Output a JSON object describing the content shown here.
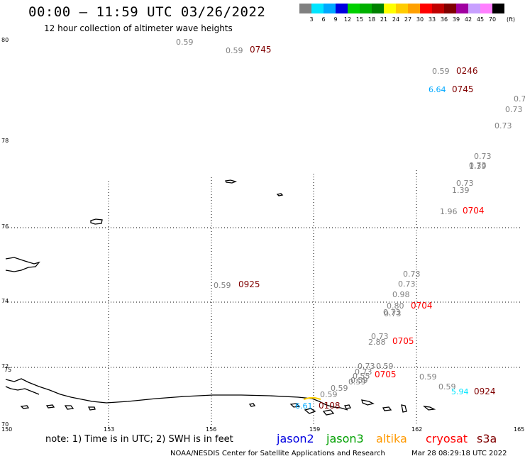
{
  "header": {
    "title": "00:00 – 11:59 UTC 03/26/2022",
    "subtitle": "12 hour collection of altimeter wave heights"
  },
  "colorbar": {
    "colors": [
      "#808080",
      "#00e5ff",
      "#00a8ff",
      "#0000e0",
      "#00d000",
      "#00b000",
      "#008000",
      "#ffff00",
      "#ffcc00",
      "#ffa000",
      "#ff0000",
      "#c00000",
      "#800000",
      "#a000a0",
      "#c8a0ff",
      "#ff80ff",
      "#000000"
    ],
    "ticks": [
      "3",
      "6",
      "9",
      "12",
      "15",
      "18",
      "21",
      "24",
      "27",
      "30",
      "33",
      "36",
      "39",
      "42",
      "45",
      "70"
    ],
    "unit": "(ft)"
  },
  "map": {
    "lat_labels": [
      "80",
      "78",
      "76",
      "74",
      "72",
      "70",
      "75"
    ],
    "lon_labels": [
      "150",
      "153",
      "156",
      "159",
      "162",
      "165"
    ]
  },
  "observations": [
    {
      "text": "0.59",
      "color": "#808080"
    },
    {
      "text": "0.59",
      "color": "#808080"
    },
    {
      "text": "0745",
      "color": "#800000"
    },
    {
      "text": "0.59",
      "color": "#808080"
    },
    {
      "text": "0246",
      "color": "#800000"
    },
    {
      "text": "6.64",
      "color": "#00a8ff"
    },
    {
      "text": "0745",
      "color": "#800000"
    },
    {
      "text": "0.7",
      "color": "#808080"
    },
    {
      "text": "0.73",
      "color": "#808080"
    },
    {
      "text": "0.73",
      "color": "#808080"
    },
    {
      "text": "0.73",
      "color": "#808080"
    },
    {
      "text": "0.73",
      "color": "#808080"
    },
    {
      "text": "1.39",
      "color": "#808080"
    },
    {
      "text": "0.73",
      "color": "#808080"
    },
    {
      "text": "1.39",
      "color": "#808080"
    },
    {
      "text": "1.96",
      "color": "#808080"
    },
    {
      "text": "0704",
      "color": "#ff0000"
    },
    {
      "text": "0.59",
      "color": "#808080"
    },
    {
      "text": "0925",
      "color": "#800000"
    },
    {
      "text": "0.73",
      "color": "#808080"
    },
    {
      "text": "0.73",
      "color": "#808080"
    },
    {
      "text": "0.98",
      "color": "#808080"
    },
    {
      "text": "0.80",
      "color": "#808080"
    },
    {
      "text": "0.73",
      "color": "#808080"
    },
    {
      "text": "0.73",
      "color": "#808080"
    },
    {
      "text": "0704",
      "color": "#ff0000"
    },
    {
      "text": "0.73",
      "color": "#808080"
    },
    {
      "text": "2.88",
      "color": "#808080"
    },
    {
      "text": "0705",
      "color": "#ff0000"
    },
    {
      "text": "0.73",
      "color": "#808080"
    },
    {
      "text": "0.59",
      "color": "#808080"
    },
    {
      "text": "0.73",
      "color": "#808080"
    },
    {
      "text": "0.55",
      "color": "#808080"
    },
    {
      "text": "0.59",
      "color": "#808080"
    },
    {
      "text": "0.59",
      "color": "#808080"
    },
    {
      "text": "0705",
      "color": "#ff0000"
    },
    {
      "text": "0.59",
      "color": "#808080"
    },
    {
      "text": "0.59",
      "color": "#808080"
    },
    {
      "text": "0.59",
      "color": "#808080"
    },
    {
      "text": "0.59",
      "color": "#808080"
    },
    {
      "text": "5.94",
      "color": "#00e5ff"
    },
    {
      "text": "0924",
      "color": "#800000"
    },
    {
      "text": "6.61",
      "color": "#00a8ff"
    },
    {
      "text": "0108",
      "color": "#800000"
    }
  ],
  "note": "note: 1) Time is in UTC; 2) SWH is in feet",
  "satellites": [
    {
      "name": "jason2",
      "color": "#0000e0"
    },
    {
      "name": "jason3",
      "color": "#00a000"
    },
    {
      "name": "altika",
      "color": "#ff9900"
    },
    {
      "name": "cryosat",
      "color": "#ff0000"
    },
    {
      "name": "s3a",
      "color": "#800000"
    }
  ],
  "footer": {
    "left": "NOAA/NESDIS Center for Satellite Applications and Research",
    "right": "Mar 28 08:29:18 UTC 2022"
  }
}
